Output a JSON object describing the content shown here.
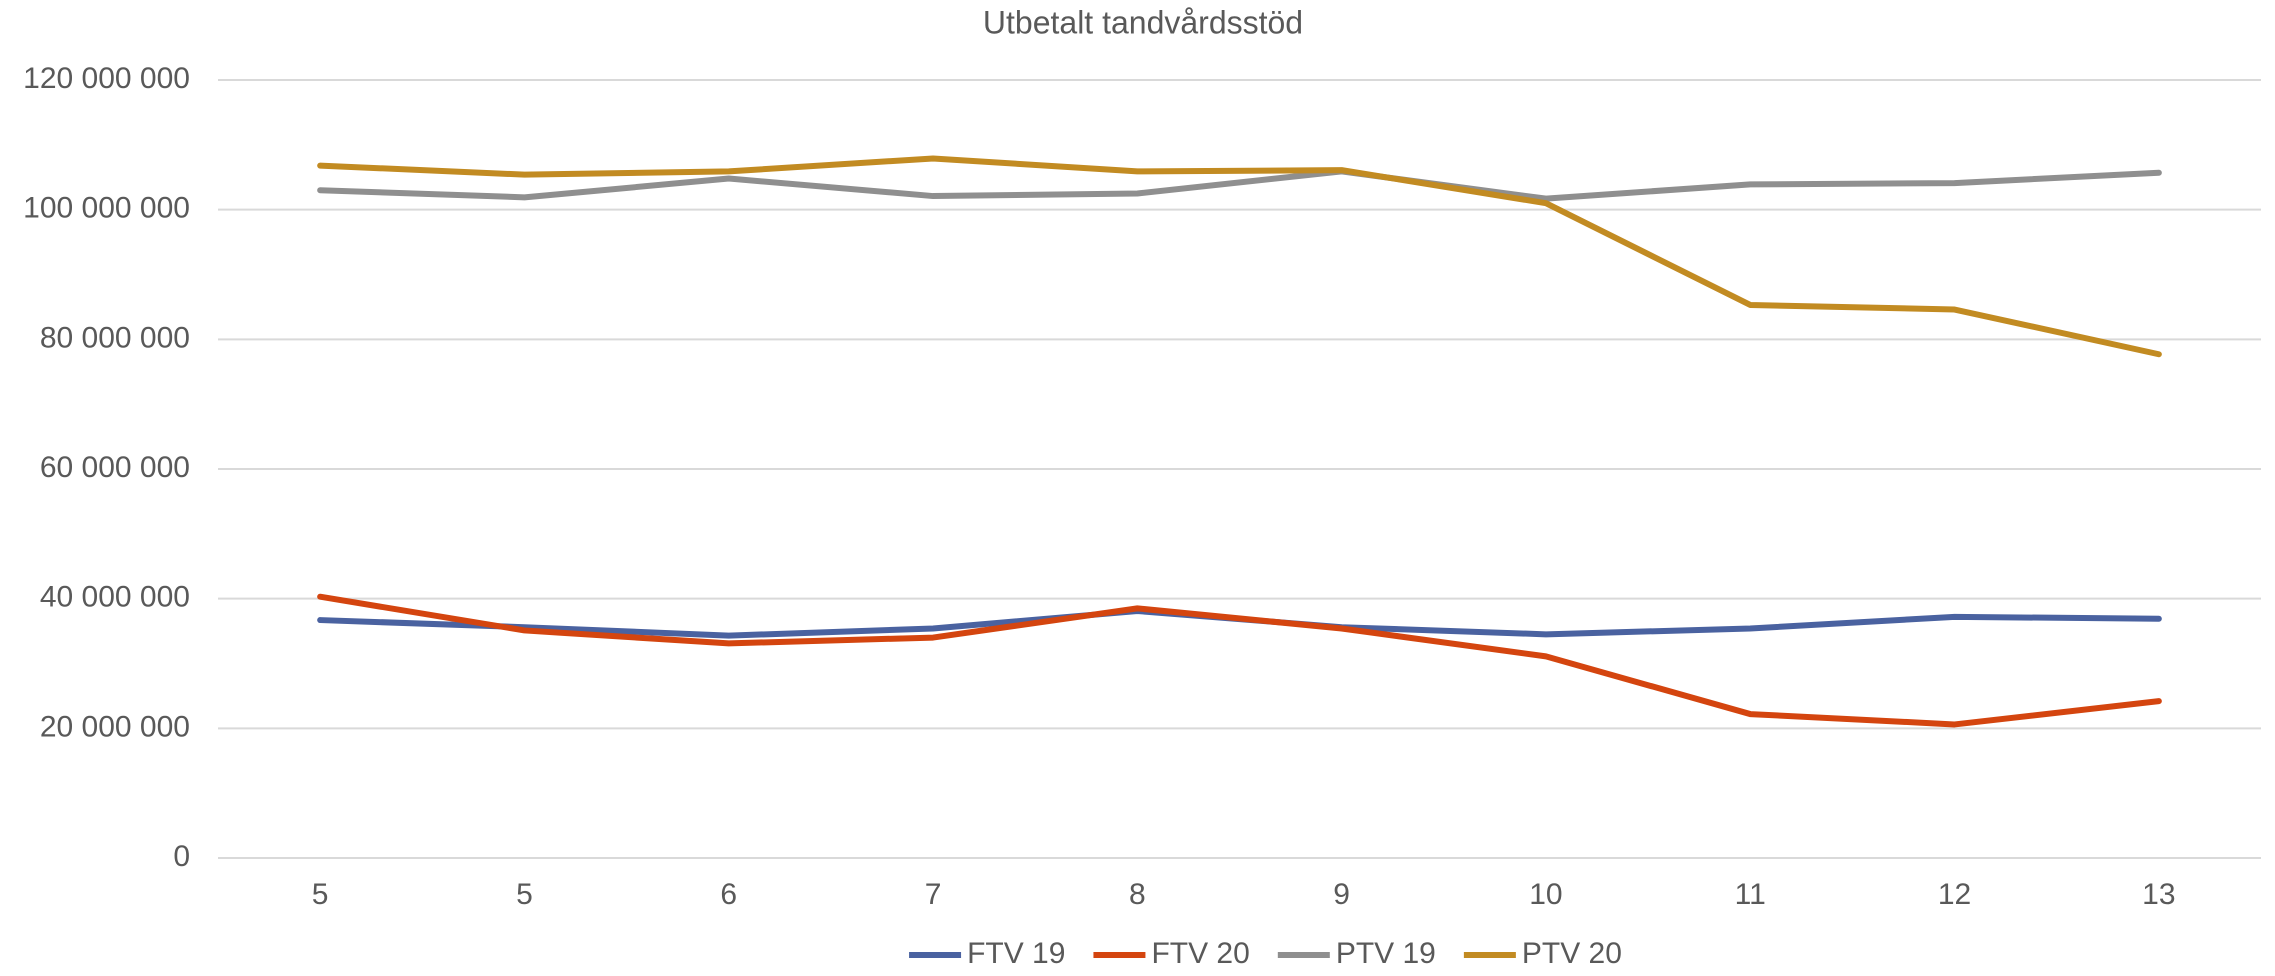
{
  "chart_data": {
    "type": "line",
    "title": "Utbetalt tandvårdsstöd",
    "categories": [
      "5",
      "5",
      "6",
      "7",
      "8",
      "9",
      "10",
      "11",
      "12",
      "13"
    ],
    "series": [
      {
        "name": "FTV 19",
        "color": "#4a62a0",
        "values": [
          36700000,
          35600000,
          34300000,
          35400000,
          38100000,
          35600000,
          34500000,
          35400000,
          37200000,
          36900000
        ]
      },
      {
        "name": "FTV 20",
        "color": "#d4450f",
        "values": [
          40300000,
          35100000,
          33100000,
          34000000,
          38500000,
          35400000,
          31100000,
          22200000,
          20600000,
          24200000
        ]
      },
      {
        "name": "PTV 19",
        "color": "#8f8f8f",
        "values": [
          103000000,
          101900000,
          104800000,
          102100000,
          102500000,
          105900000,
          101700000,
          103900000,
          104100000,
          105700000
        ]
      },
      {
        "name": "PTV 20",
        "color": "#c28b22",
        "values": [
          106800000,
          105400000,
          105900000,
          107900000,
          105900000,
          106100000,
          101000000,
          85300000,
          84600000,
          77700000
        ]
      }
    ],
    "ylim": [
      0,
      120000000
    ],
    "yticks": [
      0,
      {
        "value": 20000000,
        "label": "20 000 000"
      },
      {
        "value": 40000000,
        "label": "40 000 000"
      },
      {
        "value": 60000000,
        "label": "60 000 000"
      },
      {
        "value": 80000000,
        "label": "80 000 000"
      },
      {
        "value": 100000000,
        "label": "100 000 000"
      },
      {
        "value": 120000000,
        "label": "120 000 000"
      }
    ],
    "grid": true,
    "legend": "bottom"
  }
}
